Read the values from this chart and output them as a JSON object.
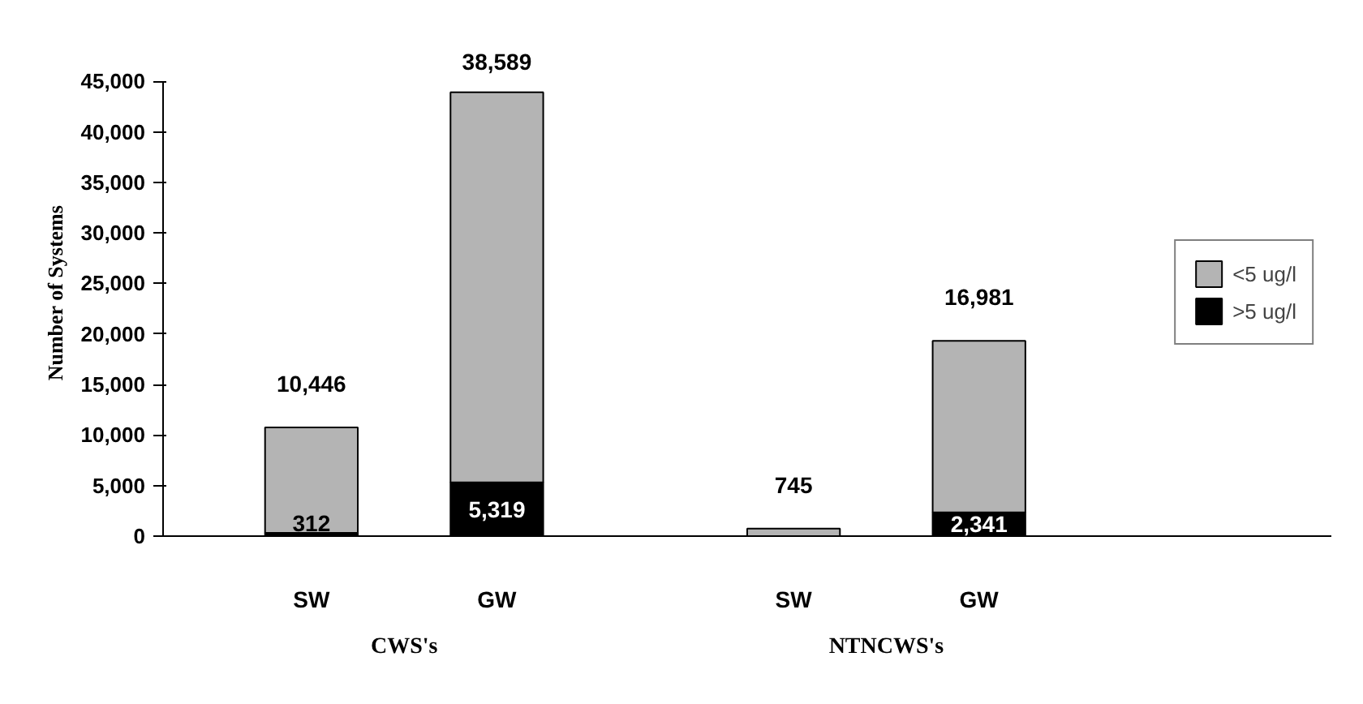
{
  "chart_data": {
    "type": "bar",
    "stacked": true,
    "ylabel": "Number of Systems",
    "categories": [
      "SW",
      "GW",
      "SW",
      "GW"
    ],
    "series": [
      {
        "name": ">5 ug/l",
        "color": "#000000",
        "values": [
          312,
          5319,
          null,
          2341
        ],
        "value_labels": [
          "312",
          "5,319",
          null,
          "2,341"
        ]
      },
      {
        "name": "<5 ug/l",
        "color": "#b4b4b4",
        "values": [
          10446,
          38589,
          745,
          16981
        ],
        "value_labels": [
          "10,446",
          "38,589",
          "745",
          "16,981"
        ]
      }
    ],
    "annotations": [
      "CWS's",
      "NTNCWS's"
    ],
    "ylim": [
      0,
      45000
    ],
    "yticks": [
      {
        "value": 0,
        "label": "0"
      },
      {
        "value": 5000,
        "label": "5,000"
      },
      {
        "value": 10000,
        "label": "10,000"
      },
      {
        "value": 15000,
        "label": "15,000"
      },
      {
        "value": 20000,
        "label": "20,000"
      },
      {
        "value": 25000,
        "label": "25,000"
      },
      {
        "value": 30000,
        "label": "30,000"
      },
      {
        "value": 35000,
        "label": "35,000"
      },
      {
        "value": 40000,
        "label": "40,000"
      },
      {
        "value": 45000,
        "label": "45,000"
      }
    ],
    "grid": false,
    "legend": "right"
  }
}
